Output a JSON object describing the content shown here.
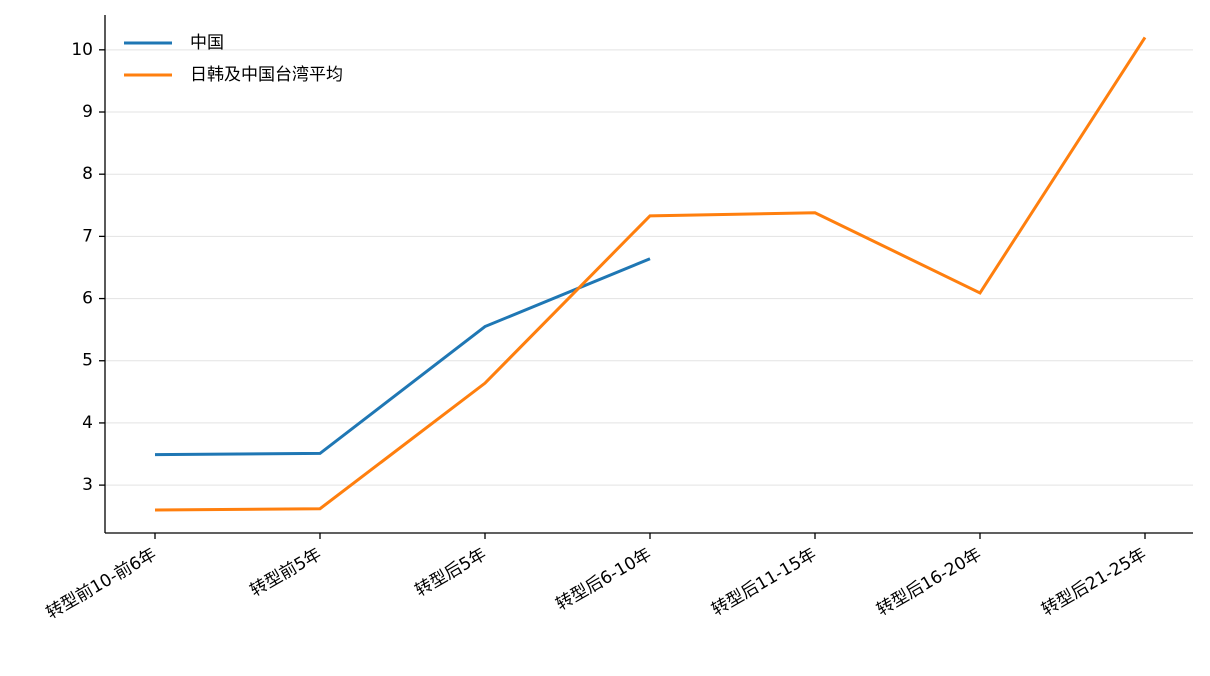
{
  "chart_data": {
    "type": "line",
    "categories": [
      "转型前10-前6年",
      "转型前5年",
      "转型后5年",
      "转型后6-10年",
      "转型后11-15年",
      "转型后16-20年",
      "转型后21-25年"
    ],
    "series": [
      {
        "name": "中国",
        "color": "#1f77b4",
        "values": [
          3.49,
          3.51,
          5.55,
          6.64,
          null,
          null,
          null
        ]
      },
      {
        "name": "日韩及中国台湾平均",
        "color": "#ff7f0e",
        "values": [
          2.6,
          2.62,
          4.64,
          7.33,
          7.38,
          6.09,
          10.2
        ]
      }
    ],
    "ylim": [
      2.23,
      10.56
    ],
    "yticks": [
      3,
      4,
      5,
      6,
      7,
      8,
      9,
      10
    ],
    "grid": true,
    "legend": "upper-left"
  }
}
